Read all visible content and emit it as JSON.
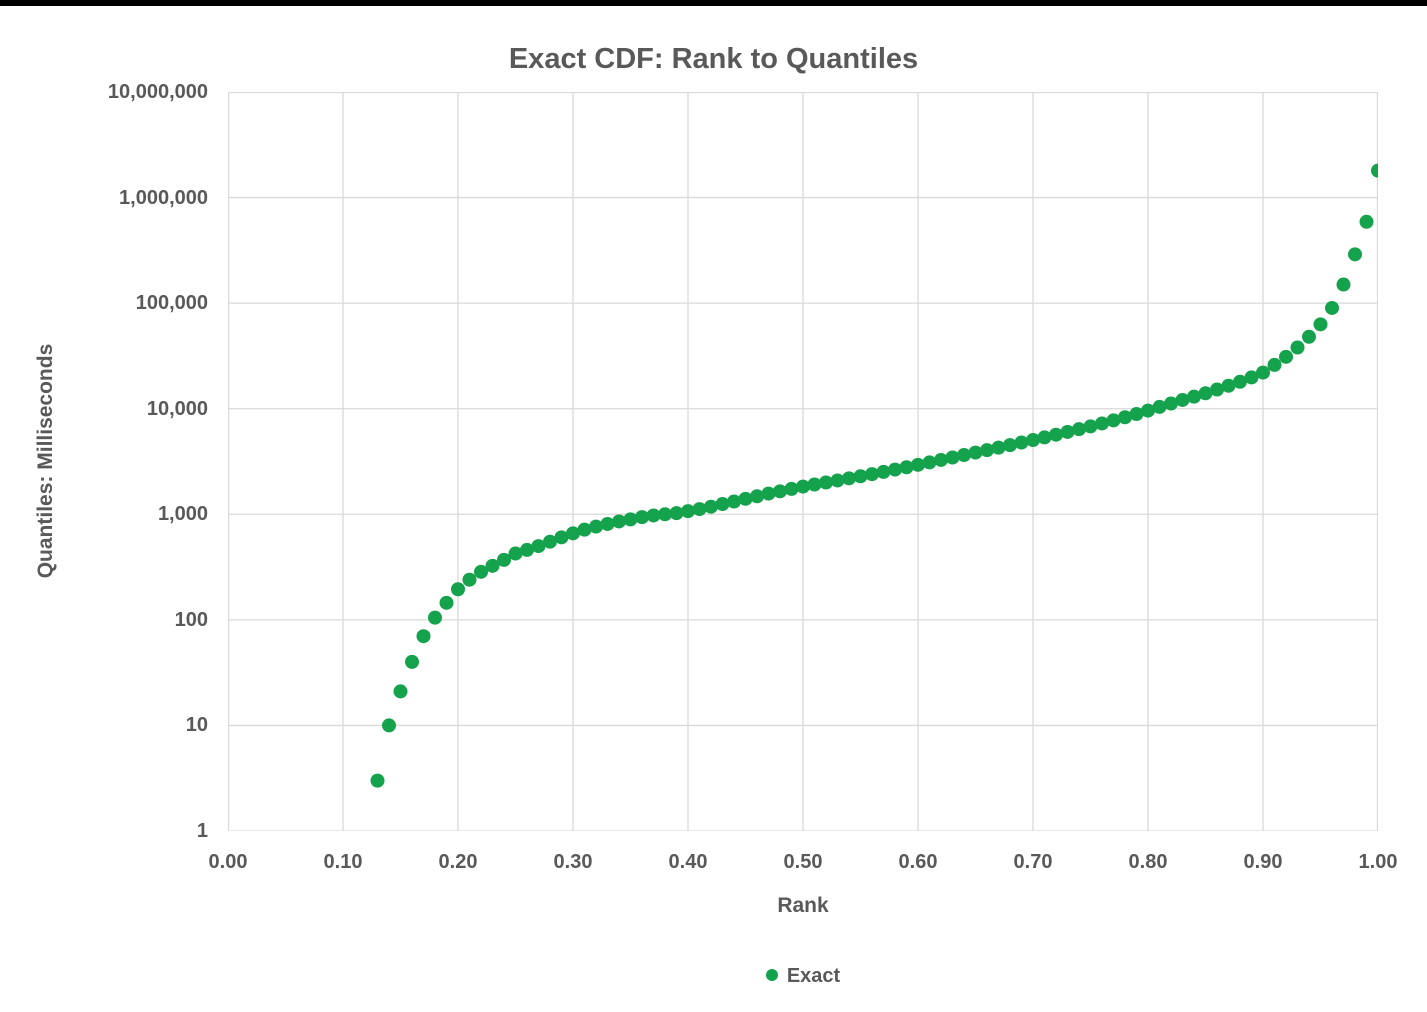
{
  "window": {
    "top_strip_color": "#000000",
    "background_color": "#FFFFFF"
  },
  "styles": {
    "text_color": "#595959",
    "grid_color": "#D9D9D9",
    "series_green": "#14A24C"
  },
  "chart_data": {
    "type": "scatter",
    "title": "Exact CDF: Rank to Quantiles",
    "xlabel": "Rank",
    "ylabel": "Quantiles: Milliseconds",
    "grid": true,
    "legend_position": "bottom",
    "legend": [
      {
        "label": "Exact",
        "color": "#14A24C"
      }
    ],
    "x_axis": {
      "min": 0,
      "max": 1,
      "tick_values": [
        0.0,
        0.1,
        0.2,
        0.3,
        0.4,
        0.5,
        0.6,
        0.7,
        0.8,
        0.9,
        1.0
      ],
      "tick_labels": [
        "0.00",
        "0.10",
        "0.20",
        "0.30",
        "0.40",
        "0.50",
        "0.60",
        "0.70",
        "0.80",
        "0.90",
        "1.00"
      ]
    },
    "y_axis": {
      "scale": "log",
      "min": 1,
      "max": 10000000,
      "tick_values": [
        1,
        10,
        100,
        1000,
        10000,
        100000,
        1000000,
        10000000
      ],
      "tick_labels": [
        "1",
        "10",
        "100",
        "1,000",
        "10,000",
        "100,000",
        "1,000,000",
        "10,000,000"
      ]
    },
    "series": [
      {
        "name": "Exact",
        "color": "#14A24C",
        "marker_radius": 7,
        "points": [
          [
            0.13,
            3
          ],
          [
            0.14,
            10
          ],
          [
            0.15,
            21
          ],
          [
            0.16,
            40
          ],
          [
            0.17,
            70
          ],
          [
            0.18,
            105
          ],
          [
            0.19,
            145
          ],
          [
            0.2,
            195
          ],
          [
            0.21,
            240
          ],
          [
            0.22,
            285
          ],
          [
            0.23,
            325
          ],
          [
            0.24,
            370
          ],
          [
            0.25,
            425
          ],
          [
            0.26,
            460
          ],
          [
            0.27,
            500
          ],
          [
            0.28,
            550
          ],
          [
            0.29,
            605
          ],
          [
            0.3,
            660
          ],
          [
            0.31,
            715
          ],
          [
            0.32,
            765
          ],
          [
            0.33,
            810
          ],
          [
            0.34,
            855
          ],
          [
            0.35,
            895
          ],
          [
            0.36,
            940
          ],
          [
            0.37,
            975
          ],
          [
            0.38,
            1000
          ],
          [
            0.39,
            1025
          ],
          [
            0.4,
            1070
          ],
          [
            0.41,
            1120
          ],
          [
            0.42,
            1180
          ],
          [
            0.43,
            1250
          ],
          [
            0.44,
            1320
          ],
          [
            0.45,
            1400
          ],
          [
            0.46,
            1480
          ],
          [
            0.47,
            1570
          ],
          [
            0.48,
            1650
          ],
          [
            0.49,
            1740
          ],
          [
            0.5,
            1830
          ],
          [
            0.51,
            1915
          ],
          [
            0.52,
            2000
          ],
          [
            0.53,
            2090
          ],
          [
            0.54,
            2190
          ],
          [
            0.55,
            2290
          ],
          [
            0.56,
            2400
          ],
          [
            0.57,
            2520
          ],
          [
            0.58,
            2650
          ],
          [
            0.59,
            2790
          ],
          [
            0.6,
            2940
          ],
          [
            0.61,
            3100
          ],
          [
            0.62,
            3270
          ],
          [
            0.63,
            3450
          ],
          [
            0.64,
            3640
          ],
          [
            0.65,
            3840
          ],
          [
            0.66,
            4050
          ],
          [
            0.67,
            4280
          ],
          [
            0.68,
            4520
          ],
          [
            0.69,
            4780
          ],
          [
            0.7,
            5050
          ],
          [
            0.71,
            5350
          ],
          [
            0.72,
            5670
          ],
          [
            0.73,
            6020
          ],
          [
            0.74,
            6400
          ],
          [
            0.75,
            6800
          ],
          [
            0.76,
            7250
          ],
          [
            0.77,
            7750
          ],
          [
            0.78,
            8300
          ],
          [
            0.79,
            8900
          ],
          [
            0.8,
            9600
          ],
          [
            0.81,
            10400
          ],
          [
            0.82,
            11200
          ],
          [
            0.83,
            12100
          ],
          [
            0.84,
            13000
          ],
          [
            0.85,
            14000
          ],
          [
            0.86,
            15200
          ],
          [
            0.87,
            16500
          ],
          [
            0.88,
            18000
          ],
          [
            0.89,
            19800
          ],
          [
            0.9,
            22000
          ],
          [
            0.91,
            26000
          ],
          [
            0.92,
            31000
          ],
          [
            0.93,
            38000
          ],
          [
            0.94,
            48000
          ],
          [
            0.95,
            63000
          ],
          [
            0.96,
            90000
          ],
          [
            0.97,
            150000
          ],
          [
            0.98,
            290000
          ],
          [
            0.99,
            590000
          ],
          [
            1.0,
            1800000
          ]
        ]
      }
    ]
  }
}
